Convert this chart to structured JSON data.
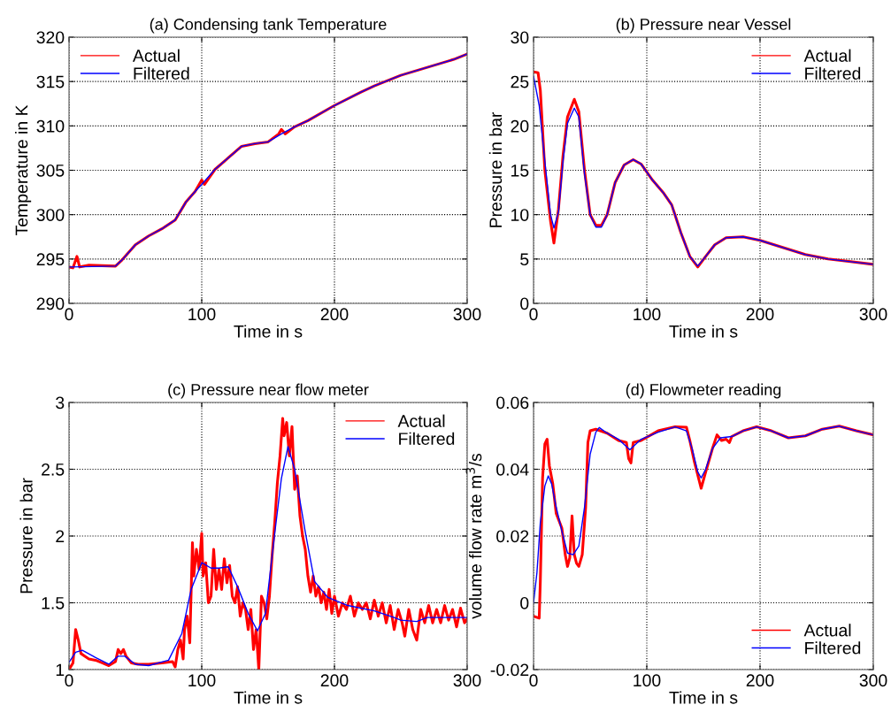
{
  "chart_data": [
    {
      "type": "line",
      "title": "(a) Condensing tank Temperature",
      "xlabel": "Time in s",
      "ylabel": "Temperature in K",
      "xlim": [
        0,
        300
      ],
      "xticks": [
        0,
        100,
        200,
        300
      ],
      "ylim": [
        290,
        320
      ],
      "yticks": [
        290,
        295,
        300,
        305,
        310,
        315,
        320
      ],
      "grid": true,
      "legend": "top left",
      "series": [
        {
          "name": "Actual",
          "color": "#ff0000",
          "x": [
            0,
            3,
            6,
            8,
            15,
            35,
            40,
            50,
            60,
            70,
            80,
            88,
            95,
            100,
            102,
            110,
            120,
            130,
            140,
            150,
            158,
            160,
            163,
            170,
            180,
            200,
            220,
            230,
            250,
            270,
            290,
            300
          ],
          "values": [
            294.1,
            294.0,
            295.3,
            294.1,
            294.3,
            294.2,
            294.9,
            296.6,
            297.6,
            298.4,
            299.4,
            301.4,
            302.6,
            303.9,
            303.4,
            305.1,
            306.4,
            307.7,
            308.0,
            308.2,
            309.1,
            309.6,
            309.1,
            309.9,
            310.6,
            312.3,
            313.8,
            314.5,
            315.7,
            316.6,
            317.5,
            318.1
          ]
        },
        {
          "name": "Filtered",
          "color": "#0000ff",
          "x": [
            0,
            35,
            40,
            50,
            60,
            70,
            80,
            88,
            95,
            100,
            110,
            120,
            130,
            140,
            150,
            160,
            170,
            180,
            200,
            220,
            230,
            250,
            270,
            290,
            300
          ],
          "values": [
            294.1,
            294.2,
            294.9,
            296.6,
            297.6,
            298.4,
            299.4,
            301.4,
            302.6,
            303.4,
            305.1,
            306.4,
            307.7,
            308.0,
            308.2,
            309.1,
            309.9,
            310.6,
            312.3,
            313.8,
            314.5,
            315.7,
            316.6,
            317.5,
            318.1
          ]
        }
      ]
    },
    {
      "type": "line",
      "title": "(b) Pressure near Vessel",
      "xlabel": "Time in s",
      "ylabel": "Pressure in bar",
      "xlim": [
        0,
        300
      ],
      "xticks": [
        0,
        100,
        200,
        300
      ],
      "ylim": [
        0,
        30
      ],
      "yticks": [
        0,
        5,
        10,
        15,
        20,
        25,
        30
      ],
      "grid": true,
      "legend": "top right",
      "series": [
        {
          "name": "Actual",
          "color": "#ff0000",
          "x": [
            0,
            4,
            6,
            10,
            15,
            18,
            22,
            26,
            30,
            36,
            40,
            45,
            50,
            55,
            60,
            65,
            72,
            80,
            88,
            95,
            105,
            115,
            122,
            130,
            138,
            145,
            152,
            160,
            170,
            185,
            200,
            220,
            240,
            260,
            280,
            300
          ],
          "values": [
            26.1,
            26.0,
            24,
            15,
            9.3,
            6.8,
            10.6,
            16.6,
            21,
            23,
            21.6,
            15,
            10,
            8.8,
            8.8,
            10,
            13.6,
            15.6,
            16.2,
            15.7,
            13.9,
            12.4,
            11.1,
            8,
            5.3,
            4.1,
            5.3,
            6.6,
            7.4,
            7.5,
            7.1,
            6.3,
            5.5,
            5.0,
            4.7,
            4.4
          ]
        },
        {
          "name": "Filtered",
          "color": "#0000ff",
          "x": [
            0,
            5,
            10,
            15,
            18,
            22,
            26,
            30,
            36,
            40,
            45,
            50,
            55,
            60,
            65,
            72,
            80,
            88,
            95,
            105,
            115,
            122,
            130,
            138,
            145,
            152,
            160,
            170,
            185,
            200,
            220,
            240,
            260,
            280,
            300
          ],
          "values": [
            25.6,
            22.3,
            16,
            10,
            8.5,
            10.3,
            16,
            20.3,
            22,
            21,
            14.6,
            10,
            8.6,
            8.6,
            10,
            13.6,
            15.6,
            16.2,
            15.7,
            13.9,
            12.4,
            11.1,
            8,
            5.3,
            4.2,
            5.3,
            6.6,
            7.4,
            7.5,
            7.1,
            6.3,
            5.5,
            5.0,
            4.7,
            4.4
          ]
        }
      ]
    },
    {
      "type": "line",
      "title": "(c) Pressure near flow meter",
      "xlabel": "Time in s",
      "ylabel": "Pressure in bar",
      "xlim": [
        0,
        300
      ],
      "xticks": [
        0,
        100,
        200,
        300
      ],
      "ylim": [
        1,
        3
      ],
      "yticks": [
        1,
        1.5,
        2,
        2.5,
        3
      ],
      "grid": true,
      "legend": "top right",
      "series": [
        {
          "name": "Actual",
          "color": "#ff0000",
          "x": [
            0,
            3,
            5,
            7,
            9,
            12,
            15,
            20,
            25,
            30,
            35,
            37,
            39,
            41,
            43,
            47,
            52,
            60,
            70,
            78,
            80,
            82,
            84,
            86,
            87,
            89,
            91,
            93,
            94,
            96,
            98,
            100,
            101,
            103,
            105,
            107,
            109,
            111,
            113,
            115,
            117,
            119,
            121,
            123,
            125,
            127,
            129,
            131,
            133,
            135,
            137,
            139,
            141,
            143,
            145,
            147,
            149,
            151,
            153,
            155,
            157,
            159,
            161,
            162,
            164,
            166,
            168,
            170,
            172,
            174,
            176,
            178,
            180,
            182,
            184,
            186,
            188,
            190,
            192,
            194,
            196,
            198,
            200,
            203,
            206,
            209,
            212,
            215,
            218,
            221,
            224,
            227,
            230,
            233,
            236,
            239,
            242,
            245,
            248,
            251,
            253,
            256,
            259,
            262,
            265,
            268,
            271,
            274,
            277,
            280,
            283,
            286,
            289,
            292,
            295,
            298,
            300
          ],
          "values": [
            1.0,
            1.05,
            1.3,
            1.22,
            1.12,
            1.1,
            1.08,
            1.07,
            1.05,
            1.03,
            1.06,
            1.15,
            1.12,
            1.15,
            1.1,
            1.05,
            1.04,
            1.04,
            1.05,
            1.06,
            1.02,
            1.15,
            1.22,
            1.08,
            1.3,
            1.4,
            1.2,
            1.95,
            1.7,
            1.9,
            1.75,
            2.02,
            1.7,
            1.8,
            1.5,
            1.55,
            1.9,
            1.6,
            1.75,
            1.6,
            1.83,
            1.65,
            1.78,
            1.55,
            1.5,
            1.62,
            1.4,
            1.5,
            1.45,
            1.3,
            1.45,
            1.15,
            1.3,
            1.0,
            1.55,
            1.5,
            1.38,
            1.55,
            1.85,
            2.1,
            2.4,
            2.6,
            2.88,
            2.75,
            2.85,
            2.6,
            2.82,
            2.35,
            2.45,
            2.15,
            2.0,
            1.9,
            1.7,
            1.58,
            1.7,
            1.55,
            1.62,
            1.5,
            1.58,
            1.45,
            1.6,
            1.42,
            1.55,
            1.4,
            1.5,
            1.45,
            1.55,
            1.4,
            1.5,
            1.45,
            1.5,
            1.38,
            1.52,
            1.4,
            1.5,
            1.35,
            1.48,
            1.3,
            1.45,
            1.35,
            1.25,
            1.45,
            1.3,
            1.22,
            1.45,
            1.35,
            1.48,
            1.35,
            1.45,
            1.35,
            1.48,
            1.37,
            1.45,
            1.32,
            1.46,
            1.35,
            1.38
          ]
        },
        {
          "name": "Filtered",
          "color": "#0000ff",
          "x": [
            0,
            5,
            10,
            20,
            30,
            37,
            42,
            50,
            60,
            75,
            85,
            92,
            100,
            107,
            113,
            120,
            127,
            135,
            142,
            148,
            155,
            160,
            165,
            170,
            178,
            185,
            195,
            210,
            230,
            245,
            250,
            262,
            270,
            300
          ],
          "values": [
            1.055,
            1.13,
            1.145,
            1.09,
            1.04,
            1.1,
            1.1,
            1.04,
            1.03,
            1.07,
            1.27,
            1.6,
            1.8,
            1.76,
            1.76,
            1.77,
            1.62,
            1.42,
            1.29,
            1.42,
            2.02,
            2.43,
            2.67,
            2.5,
            2.03,
            1.66,
            1.54,
            1.48,
            1.44,
            1.39,
            1.37,
            1.36,
            1.39,
            1.39
          ]
        }
      ]
    },
    {
      "type": "line",
      "title": "(d) Flowmeter reading",
      "xlabel": "Time in s",
      "ylabel": "volume flow rate m$^{3}$/s",
      "xlim": [
        0,
        300
      ],
      "xticks": [
        0,
        100,
        200,
        300
      ],
      "ylim": [
        -0.02,
        0.06
      ],
      "yticks": [
        -0.02,
        0,
        0.02,
        0.04,
        0.06
      ],
      "grid": true,
      "legend": "bottom right",
      "series": [
        {
          "name": "Actual",
          "color": "#ff0000",
          "x": [
            0,
            5,
            6,
            8,
            10,
            12,
            14,
            17,
            20,
            25,
            28,
            30,
            32,
            34,
            36,
            38,
            40,
            43,
            46,
            48,
            50,
            55,
            65,
            75,
            82,
            84,
            86,
            88,
            95,
            110,
            125,
            135,
            138,
            142,
            148,
            152,
            158,
            162,
            166,
            170,
            173,
            175,
            185,
            197,
            210,
            225,
            240,
            255,
            270,
            285,
            300
          ],
          "values": [
            -0.004,
            -0.0046,
            0.0065,
            0.0374,
            0.0476,
            0.049,
            0.041,
            0.0356,
            0.0268,
            0.0224,
            0.0144,
            0.0109,
            0.0135,
            0.026,
            0.0144,
            0.0118,
            0.0109,
            0.0144,
            0.0286,
            0.048,
            0.0515,
            0.052,
            0.0508,
            0.0486,
            0.048,
            0.0432,
            0.0419,
            0.048,
            0.0486,
            0.0515,
            0.0527,
            0.0526,
            0.0486,
            0.0423,
            0.0343,
            0.0392,
            0.0462,
            0.0503,
            0.0486,
            0.049,
            0.048,
            0.0498,
            0.0515,
            0.0527,
            0.0515,
            0.0494,
            0.05,
            0.052,
            0.0529,
            0.0515,
            0.0503
          ]
        },
        {
          "name": "Filtered",
          "color": "#0000ff",
          "x": [
            0,
            3,
            6,
            10,
            13,
            16,
            20,
            25,
            30,
            35,
            40,
            45,
            50,
            55,
            58,
            65,
            75,
            85,
            95,
            110,
            125,
            135,
            140,
            145,
            148,
            152,
            158,
            165,
            175,
            185,
            197,
            210,
            225,
            240,
            255,
            270,
            285,
            300
          ],
          "values": [
            0,
            0.009,
            0.024,
            0.035,
            0.038,
            0.0356,
            0.0286,
            0.0215,
            0.0149,
            0.0144,
            0.017,
            0.0286,
            0.0445,
            0.0511,
            0.0525,
            0.0508,
            0.049,
            0.0458,
            0.049,
            0.0511,
            0.0527,
            0.0515,
            0.0462,
            0.0392,
            0.0374,
            0.04,
            0.0462,
            0.0494,
            0.0498,
            0.0515,
            0.0527,
            0.0515,
            0.0494,
            0.05,
            0.052,
            0.0529,
            0.0515,
            0.0503
          ]
        }
      ]
    }
  ]
}
